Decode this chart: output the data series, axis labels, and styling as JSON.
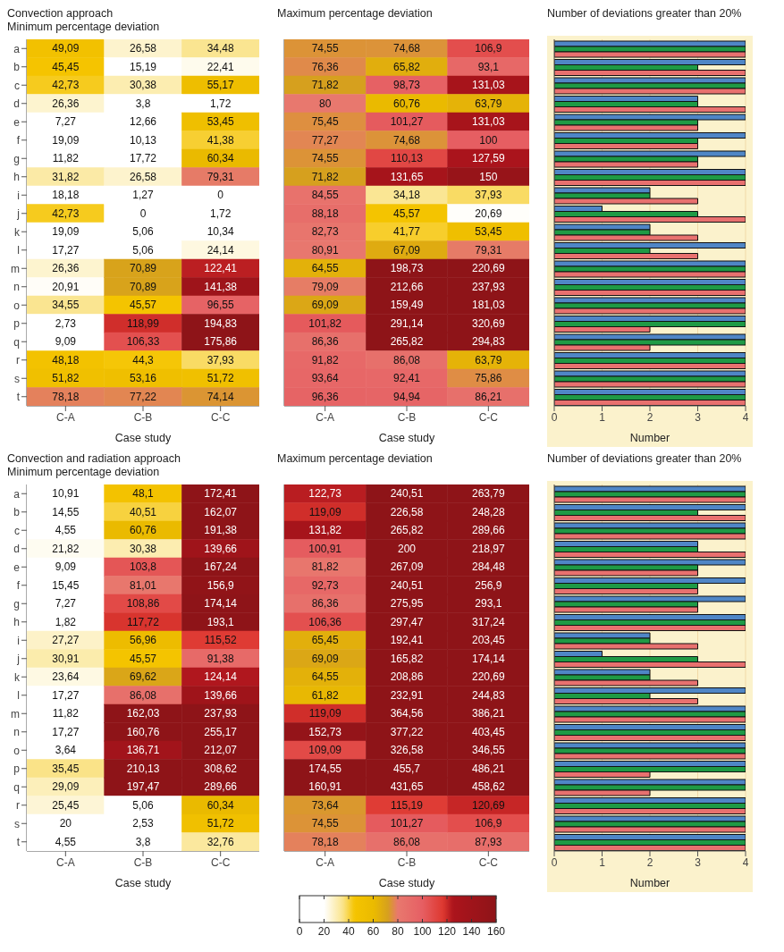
{
  "chart_data": [
    {
      "type": "heatmap",
      "title": "Convection approach",
      "subtitle": "Minimum percentage deviation",
      "xlabel": "Case study",
      "categories": [
        "C-A",
        "C-B",
        "C-C"
      ],
      "y_categories": [
        "a",
        "b",
        "c",
        "d",
        "e",
        "f",
        "g",
        "h",
        "i",
        "j",
        "k",
        "l",
        "m",
        "n",
        "o",
        "p",
        "q",
        "r",
        "s",
        "t"
      ],
      "cells": [
        [
          49.09,
          26.58,
          34.48
        ],
        [
          45.45,
          15.19,
          22.41
        ],
        [
          42.73,
          30.38,
          55.17
        ],
        [
          26.36,
          3.8,
          1.72
        ],
        [
          7.27,
          12.66,
          53.45
        ],
        [
          19.09,
          10.13,
          41.38
        ],
        [
          11.82,
          17.72,
          60.34
        ],
        [
          31.82,
          26.58,
          79.31
        ],
        [
          18.18,
          1.27,
          0
        ],
        [
          42.73,
          0,
          1.72
        ],
        [
          19.09,
          5.06,
          10.34
        ],
        [
          17.27,
          5.06,
          24.14
        ],
        [
          26.36,
          70.89,
          122.41
        ],
        [
          20.91,
          70.89,
          141.38
        ],
        [
          34.55,
          45.57,
          96.55
        ],
        [
          2.73,
          118.99,
          194.83
        ],
        [
          9.09,
          106.33,
          175.86
        ],
        [
          48.18,
          44.3,
          37.93
        ],
        [
          51.82,
          53.16,
          51.72
        ],
        [
          78.18,
          77.22,
          74.14
        ]
      ],
      "cell_labels": [
        [
          "49,09",
          "26,58",
          "34,48"
        ],
        [
          "45,45",
          "15,19",
          "22,41"
        ],
        [
          "42,73",
          "30,38",
          "55,17"
        ],
        [
          "26,36",
          "3,8",
          "1,72"
        ],
        [
          "7,27",
          "12,66",
          "53,45"
        ],
        [
          "19,09",
          "10,13",
          "41,38"
        ],
        [
          "11,82",
          "17,72",
          "60,34"
        ],
        [
          "31,82",
          "26,58",
          "79,31"
        ],
        [
          "18,18",
          "1,27",
          "0"
        ],
        [
          "42,73",
          "0",
          "1,72"
        ],
        [
          "19,09",
          "5,06",
          "10,34"
        ],
        [
          "17,27",
          "5,06",
          "24,14"
        ],
        [
          "26,36",
          "70,89",
          "122,41"
        ],
        [
          "20,91",
          "70,89",
          "141,38"
        ],
        [
          "34,55",
          "45,57",
          "96,55"
        ],
        [
          "2,73",
          "118,99",
          "194,83"
        ],
        [
          "9,09",
          "106,33",
          "175,86"
        ],
        [
          "48,18",
          "44,3",
          "37,93"
        ],
        [
          "51,82",
          "53,16",
          "51,72"
        ],
        [
          "78,18",
          "77,22",
          "74,14"
        ]
      ]
    },
    {
      "type": "heatmap",
      "title": "Maximum percentage deviation",
      "xlabel": "Case study",
      "categories": [
        "C-A",
        "C-B",
        "C-C"
      ],
      "y_categories": [
        null,
        null,
        null,
        null,
        null,
        null,
        null,
        null,
        null,
        null,
        null,
        null,
        null,
        null,
        null,
        null,
        null,
        null,
        null,
        null
      ],
      "tick_labels": "x",
      "cells": [
        [
          74.55,
          74.68,
          106.9
        ],
        [
          76.36,
          65.82,
          93.1
        ],
        [
          71.82,
          98.73,
          131.03
        ],
        [
          80,
          60.76,
          63.79
        ],
        [
          75.45,
          101.27,
          131.03
        ],
        [
          77.27,
          74.68,
          100
        ],
        [
          74.55,
          110.13,
          127.59
        ],
        [
          71.82,
          131.65,
          150
        ],
        [
          84.55,
          34.18,
          37.93
        ],
        [
          88.18,
          45.57,
          20.69
        ],
        [
          82.73,
          41.77,
          53.45
        ],
        [
          80.91,
          67.09,
          79.31
        ],
        [
          64.55,
          198.73,
          220.69
        ],
        [
          79.09,
          212.66,
          237.93
        ],
        [
          69.09,
          159.49,
          181.03
        ],
        [
          101.82,
          291.14,
          320.69
        ],
        [
          86.36,
          265.82,
          294.83
        ],
        [
          91.82,
          86.08,
          63.79
        ],
        [
          93.64,
          92.41,
          75.86
        ],
        [
          96.36,
          94.94,
          86.21
        ]
      ],
      "cell_labels": [
        [
          "74,55",
          "74,68",
          "106,9"
        ],
        [
          "76,36",
          "65,82",
          "93,1"
        ],
        [
          "71,82",
          "98,73",
          "131,03"
        ],
        [
          "80",
          "60,76",
          "63,79"
        ],
        [
          "75,45",
          "101,27",
          "131,03"
        ],
        [
          "77,27",
          "74,68",
          "100"
        ],
        [
          "74,55",
          "110,13",
          "127,59"
        ],
        [
          "71,82",
          "131,65",
          "150"
        ],
        [
          "84,55",
          "34,18",
          "37,93"
        ],
        [
          "88,18",
          "45,57",
          "20,69"
        ],
        [
          "82,73",
          "41,77",
          "53,45"
        ],
        [
          "80,91",
          "67,09",
          "79,31"
        ],
        [
          "64,55",
          "198,73",
          "220,69"
        ],
        [
          "79,09",
          "212,66",
          "237,93"
        ],
        [
          "69,09",
          "159,49",
          "181,03"
        ],
        [
          "101,82",
          "291,14",
          "320,69"
        ],
        [
          "86,36",
          "265,82",
          "294,83"
        ],
        [
          "91,82",
          "86,08",
          "63,79"
        ],
        [
          "93,64",
          "92,41",
          "75,86"
        ],
        [
          "96,36",
          "94,94",
          "86,21"
        ]
      ]
    },
    {
      "type": "bar",
      "orientation": "horizontal",
      "title": "Number of deviations greater than 20%",
      "xlabel": "Number",
      "categories": [
        null,
        null,
        null,
        null,
        null,
        null,
        null,
        null,
        null,
        null,
        null,
        null,
        null,
        null,
        null,
        null,
        null,
        null,
        null,
        null
      ],
      "tick_labels": "x",
      "xlim": [
        0,
        4
      ],
      "xticks": [
        0,
        1,
        2,
        3,
        4
      ],
      "grid": true,
      "series": [
        {
          "color": "#4f86c6",
          "values": [
            4,
            4,
            4,
            3,
            4,
            4,
            4,
            4,
            2,
            1,
            2,
            4,
            4,
            4,
            4,
            4,
            4,
            4,
            4,
            4
          ]
        },
        {
          "color": "#1f9a45",
          "values": [
            4,
            3,
            4,
            3,
            3,
            3,
            3,
            4,
            2,
            3,
            2,
            2,
            4,
            4,
            4,
            4,
            4,
            4,
            4,
            4
          ]
        },
        {
          "color": "#e8716f",
          "values": [
            4,
            4,
            4,
            4,
            3,
            3,
            3,
            4,
            3,
            4,
            3,
            3,
            4,
            4,
            4,
            2,
            2,
            4,
            4,
            4
          ]
        }
      ]
    },
    {
      "type": "heatmap",
      "title": "Convection and radiation approach",
      "subtitle": "Minimum percentage deviation",
      "xlabel": "Case study",
      "categories": [
        "C-A",
        "C-B",
        "C-C"
      ],
      "y_categories": [
        "a",
        "b",
        "c",
        "d",
        "e",
        "f",
        "g",
        "h",
        "i",
        "j",
        "k",
        "l",
        "m",
        "n",
        "o",
        "p",
        "q",
        "r",
        "s",
        "t"
      ],
      "cells": [
        [
          10.91,
          48.1,
          172.41
        ],
        [
          14.55,
          40.51,
          162.07
        ],
        [
          4.55,
          60.76,
          191.38
        ],
        [
          21.82,
          30.38,
          139.66
        ],
        [
          9.09,
          103.8,
          167.24
        ],
        [
          15.45,
          81.01,
          156.9
        ],
        [
          7.27,
          108.86,
          174.14
        ],
        [
          1.82,
          117.72,
          193.1
        ],
        [
          27.27,
          56.96,
          115.52
        ],
        [
          30.91,
          45.57,
          91.38
        ],
        [
          23.64,
          69.62,
          124.14
        ],
        [
          17.27,
          86.08,
          139.66
        ],
        [
          11.82,
          162.03,
          237.93
        ],
        [
          17.27,
          160.76,
          255.17
        ],
        [
          3.64,
          136.71,
          212.07
        ],
        [
          35.45,
          210.13,
          308.62
        ],
        [
          29.09,
          197.47,
          289.66
        ],
        [
          25.45,
          5.06,
          60.34
        ],
        [
          20,
          2.53,
          51.72
        ],
        [
          4.55,
          3.8,
          32.76
        ]
      ],
      "cell_labels": [
        [
          "10,91",
          "48,1",
          "172,41"
        ],
        [
          "14,55",
          "40,51",
          "162,07"
        ],
        [
          "4,55",
          "60,76",
          "191,38"
        ],
        [
          "21,82",
          "30,38",
          "139,66"
        ],
        [
          "9,09",
          "103,8",
          "167,24"
        ],
        [
          "15,45",
          "81,01",
          "156,9"
        ],
        [
          "7,27",
          "108,86",
          "174,14"
        ],
        [
          "1,82",
          "117,72",
          "193,1"
        ],
        [
          "27,27",
          "56,96",
          "115,52"
        ],
        [
          "30,91",
          "45,57",
          "91,38"
        ],
        [
          "23,64",
          "69,62",
          "124,14"
        ],
        [
          "17,27",
          "86,08",
          "139,66"
        ],
        [
          "11,82",
          "162,03",
          "237,93"
        ],
        [
          "17,27",
          "160,76",
          "255,17"
        ],
        [
          "3,64",
          "136,71",
          "212,07"
        ],
        [
          "35,45",
          "210,13",
          "308,62"
        ],
        [
          "29,09",
          "197,47",
          "289,66"
        ],
        [
          "25,45",
          "5,06",
          "60,34"
        ],
        [
          "20",
          "2,53",
          "51,72"
        ],
        [
          "4,55",
          "3,8",
          "32,76"
        ]
      ]
    },
    {
      "type": "heatmap",
      "title": "Maximum percentage deviation",
      "xlabel": "Case study",
      "categories": [
        "C-A",
        "C-B",
        "C-C"
      ],
      "y_categories": [
        null,
        null,
        null,
        null,
        null,
        null,
        null,
        null,
        null,
        null,
        null,
        null,
        null,
        null,
        null,
        null,
        null,
        null,
        null,
        null
      ],
      "clim": [
        0,
        160
      ],
      "cticks": [
        0,
        20,
        40,
        60,
        80,
        100,
        120,
        140,
        160
      ],
      "tick_labels": "x",
      "cells": [
        [
          122.73,
          240.51,
          263.79
        ],
        [
          119.09,
          226.58,
          248.28
        ],
        [
          131.82,
          265.82,
          289.66
        ],
        [
          100.91,
          200,
          218.97
        ],
        [
          81.82,
          267.09,
          284.48
        ],
        [
          92.73,
          240.51,
          256.9
        ],
        [
          86.36,
          275.95,
          293.1
        ],
        [
          106.36,
          297.47,
          317.24
        ],
        [
          65.45,
          192.41,
          203.45
        ],
        [
          69.09,
          165.82,
          174.14
        ],
        [
          64.55,
          208.86,
          220.69
        ],
        [
          61.82,
          232.91,
          244.83
        ],
        [
          119.09,
          364.56,
          386.21
        ],
        [
          152.73,
          377.22,
          403.45
        ],
        [
          109.09,
          326.58,
          346.55
        ],
        [
          174.55,
          455.7,
          486.21
        ],
        [
          160.91,
          431.65,
          458.62
        ],
        [
          73.64,
          115.19,
          120.69
        ],
        [
          74.55,
          101.27,
          106.9
        ],
        [
          78.18,
          86.08,
          87.93
        ]
      ],
      "cell_labels": [
        [
          "122,73",
          "240,51",
          "263,79"
        ],
        [
          "119,09",
          "226,58",
          "248,28"
        ],
        [
          "131,82",
          "265,82",
          "289,66"
        ],
        [
          "100,91",
          "200",
          "218,97"
        ],
        [
          "81,82",
          "267,09",
          "284,48"
        ],
        [
          "92,73",
          "240,51",
          "256,9"
        ],
        [
          "86,36",
          "275,95",
          "293,1"
        ],
        [
          "106,36",
          "297,47",
          "317,24"
        ],
        [
          "65,45",
          "192,41",
          "203,45"
        ],
        [
          "69,09",
          "165,82",
          "174,14"
        ],
        [
          "64,55",
          "208,86",
          "220,69"
        ],
        [
          "61,82",
          "232,91",
          "244,83"
        ],
        [
          "119,09",
          "364,56",
          "386,21"
        ],
        [
          "152,73",
          "377,22",
          "403,45"
        ],
        [
          "109,09",
          "326,58",
          "346,55"
        ],
        [
          "174,55",
          "455,7",
          "486,21"
        ],
        [
          "160,91",
          "431,65",
          "458,62"
        ],
        [
          "73,64",
          "115,19",
          "120,69"
        ],
        [
          "74,55",
          "101,27",
          "106,9"
        ],
        [
          "78,18",
          "86,08",
          "87,93"
        ]
      ]
    },
    {
      "type": "bar",
      "orientation": "horizontal",
      "title": "Number of deviations greater than 20%",
      "xlabel": "Number",
      "categories": [
        null,
        null,
        null,
        null,
        null,
        null,
        null,
        null,
        null,
        null,
        null,
        null,
        null,
        null,
        null,
        null,
        null,
        null,
        null,
        null
      ],
      "tick_labels": "x",
      "xlim": [
        0,
        4
      ],
      "xticks": [
        0,
        1,
        2,
        3,
        4
      ],
      "grid": true,
      "series": [
        {
          "color": "#4f86c6",
          "values": [
            4,
            4,
            4,
            3,
            4,
            4,
            4,
            4,
            2,
            1,
            2,
            4,
            4,
            4,
            4,
            4,
            4,
            4,
            4,
            4
          ]
        },
        {
          "color": "#1f9a45",
          "values": [
            4,
            3,
            4,
            3,
            3,
            3,
            3,
            4,
            2,
            3,
            2,
            2,
            4,
            4,
            4,
            4,
            4,
            4,
            4,
            4
          ]
        },
        {
          "color": "#e8716f",
          "values": [
            4,
            4,
            4,
            4,
            3,
            3,
            3,
            4,
            3,
            4,
            3,
            3,
            4,
            4,
            4,
            2,
            2,
            4,
            4,
            4
          ]
        }
      ]
    }
  ]
}
